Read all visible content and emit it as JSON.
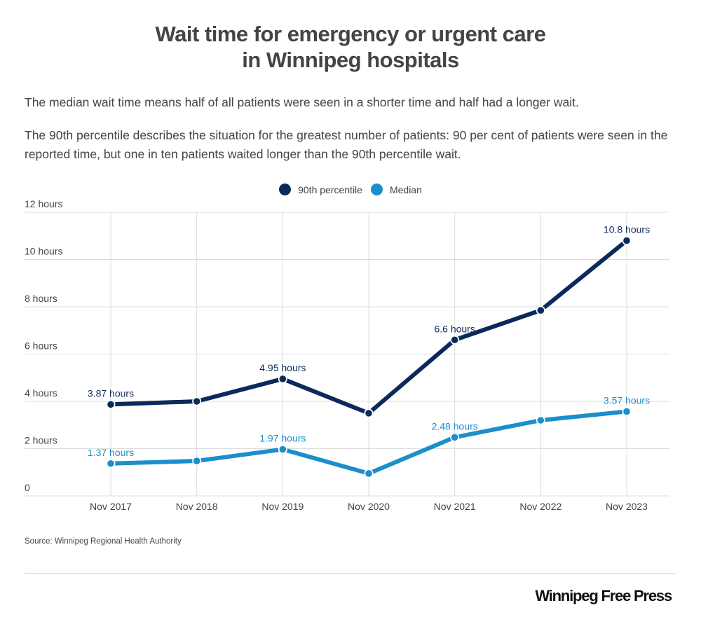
{
  "header": {
    "title_line1": "Wait time for emergency or urgent care",
    "title_line2": "in Winnipeg hospitals",
    "description1": "The median wait time means half of all patients were seen in a shorter time and half had a longer wait.",
    "description2": "The 90th percentile describes the situation for the greatest number of patients: 90 per cent of patients were seen in the reported time, but one in ten patients waited longer than the 90th percentile wait."
  },
  "legend": [
    {
      "label": "90th percentile",
      "color": "#0b2a5b"
    },
    {
      "label": "Median",
      "color": "#1a8fcb"
    }
  ],
  "footer": {
    "source": "Source: Winnipeg Regional Health Authority",
    "brand": "Winnipeg Free Press"
  },
  "chart_data": {
    "type": "line",
    "title": "Wait time for emergency or urgent care in Winnipeg hospitals",
    "xlabel": "",
    "ylabel": "",
    "categories": [
      "Nov 2017",
      "Nov 2018",
      "Nov 2019",
      "Nov 2020",
      "Nov 2021",
      "Nov 2022",
      "Nov 2023"
    ],
    "ylim": [
      0,
      12
    ],
    "yticks": [
      0,
      2,
      4,
      6,
      8,
      10,
      12
    ],
    "ytick_labels": [
      "0",
      "2 hours",
      "4 hours",
      "6 hours",
      "8 hours",
      "10 hours",
      "12 hours"
    ],
    "grid": true,
    "legend_position": "top-center",
    "series": [
      {
        "name": "90th percentile",
        "color": "#0b2a5b",
        "values": [
          3.87,
          4.0,
          4.95,
          3.5,
          6.6,
          7.85,
          10.8
        ],
        "labels": [
          "3.87 hours",
          null,
          "4.95 hours",
          null,
          "6.6 hours",
          null,
          "10.8 hours"
        ]
      },
      {
        "name": "Median",
        "color": "#1a8fcb",
        "values": [
          1.37,
          1.48,
          1.97,
          0.95,
          2.48,
          3.2,
          3.57
        ],
        "labels": [
          "1.37 hours",
          null,
          "1.97 hours",
          null,
          "2.48 hours",
          null,
          "3.57 hours"
        ]
      }
    ]
  }
}
